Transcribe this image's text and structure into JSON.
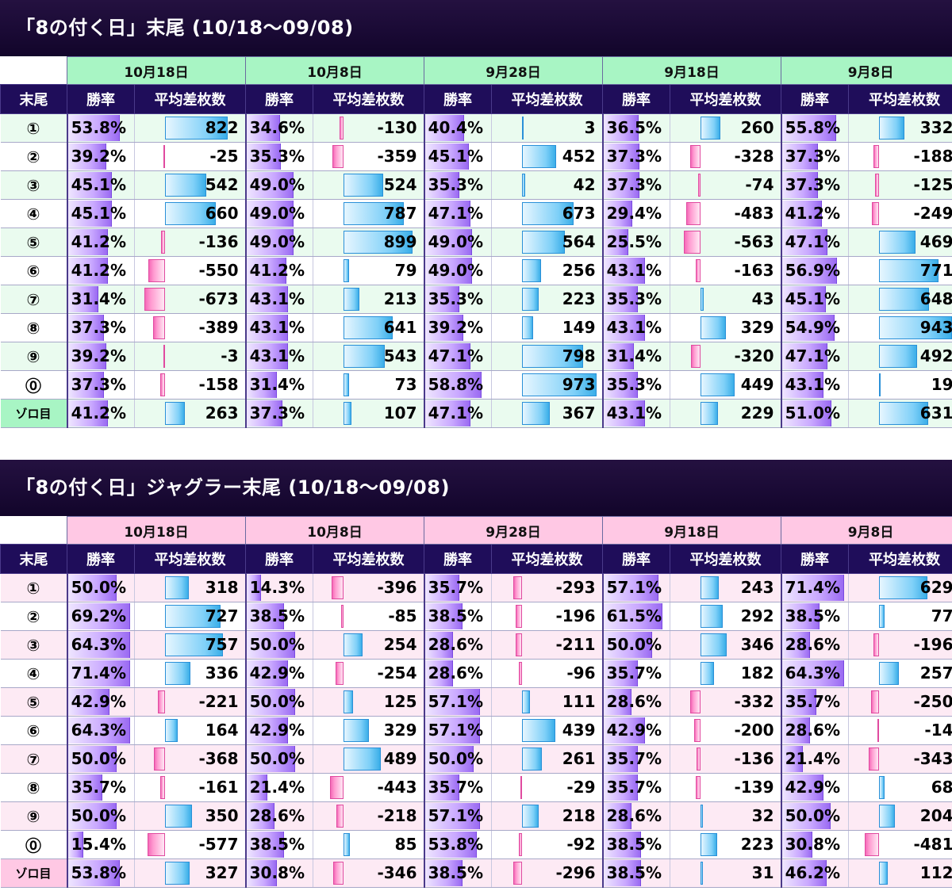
{
  "colors": {
    "title_bg": "#1a0a35",
    "header_bg": "#1f0d5a",
    "t1_date_bg": "#a8f5c4",
    "t1_row_alt": "#eafbef",
    "t2_date_bg": "#ffc8e4",
    "t2_row_alt": "#fdeaf4",
    "rate_bar": "#b48aff",
    "pos_bar": "#5bbcf0",
    "neg_bar": "#ff8fc8"
  },
  "header": {
    "label_col": "末尾",
    "rate_col": "勝率",
    "diff_col": "平均差枚数"
  },
  "tables": [
    {
      "title": "「8の付く日」末尾 (10/18〜09/08)",
      "dates": [
        "10月18日",
        "10月8日",
        "9月28日",
        "9月18日",
        "9月8日"
      ],
      "rows": [
        {
          "label": "①",
          "cells": [
            [
              "53.8%",
              822
            ],
            [
              "34.6%",
              -130
            ],
            [
              "40.4%",
              3
            ],
            [
              "36.5%",
              260
            ],
            [
              "55.8%",
              332
            ]
          ]
        },
        {
          "label": "②",
          "cells": [
            [
              "39.2%",
              -25
            ],
            [
              "35.3%",
              -359
            ],
            [
              "45.1%",
              452
            ],
            [
              "37.3%",
              -328
            ],
            [
              "37.3%",
              -188
            ]
          ]
        },
        {
          "label": "③",
          "cells": [
            [
              "45.1%",
              542
            ],
            [
              "49.0%",
              524
            ],
            [
              "35.3%",
              42
            ],
            [
              "37.3%",
              -74
            ],
            [
              "37.3%",
              -125
            ]
          ]
        },
        {
          "label": "④",
          "cells": [
            [
              "45.1%",
              660
            ],
            [
              "49.0%",
              787
            ],
            [
              "47.1%",
              673
            ],
            [
              "29.4%",
              -483
            ],
            [
              "41.2%",
              -249
            ]
          ]
        },
        {
          "label": "⑤",
          "cells": [
            [
              "41.2%",
              -136
            ],
            [
              "49.0%",
              899
            ],
            [
              "49.0%",
              564
            ],
            [
              "25.5%",
              -563
            ],
            [
              "47.1%",
              469
            ]
          ]
        },
        {
          "label": "⑥",
          "cells": [
            [
              "41.2%",
              -550
            ],
            [
              "41.2%",
              79
            ],
            [
              "49.0%",
              256
            ],
            [
              "43.1%",
              -163
            ],
            [
              "56.9%",
              771
            ]
          ]
        },
        {
          "label": "⑦",
          "cells": [
            [
              "31.4%",
              -673
            ],
            [
              "43.1%",
              213
            ],
            [
              "35.3%",
              223
            ],
            [
              "35.3%",
              43
            ],
            [
              "45.1%",
              648
            ]
          ]
        },
        {
          "label": "⑧",
          "cells": [
            [
              "37.3%",
              -389
            ],
            [
              "43.1%",
              641
            ],
            [
              "39.2%",
              149
            ],
            [
              "43.1%",
              329
            ],
            [
              "54.9%",
              943
            ]
          ]
        },
        {
          "label": "⑨",
          "cells": [
            [
              "39.2%",
              -3
            ],
            [
              "43.1%",
              543
            ],
            [
              "47.1%",
              798
            ],
            [
              "31.4%",
              -320
            ],
            [
              "47.1%",
              492
            ]
          ]
        },
        {
          "label": "⓪",
          "cells": [
            [
              "37.3%",
              -158
            ],
            [
              "31.4%",
              73
            ],
            [
              "58.8%",
              973
            ],
            [
              "35.3%",
              449
            ],
            [
              "43.1%",
              19
            ]
          ]
        },
        {
          "label": "ゾロ目",
          "cells": [
            [
              "41.2%",
              263
            ],
            [
              "37.3%",
              107
            ],
            [
              "47.1%",
              367
            ],
            [
              "43.1%",
              229
            ],
            [
              "51.0%",
              631
            ]
          ]
        }
      ]
    },
    {
      "title": "「8の付く日」ジャグラー末尾 (10/18〜09/08)",
      "dates": [
        "10月18日",
        "10月8日",
        "9月28日",
        "9月18日",
        "9月8日"
      ],
      "rows": [
        {
          "label": "①",
          "cells": [
            [
              "50.0%",
              318
            ],
            [
              "14.3%",
              -396
            ],
            [
              "35.7%",
              -293
            ],
            [
              "57.1%",
              243
            ],
            [
              "71.4%",
              629
            ]
          ]
        },
        {
          "label": "②",
          "cells": [
            [
              "69.2%",
              727
            ],
            [
              "38.5%",
              -85
            ],
            [
              "38.5%",
              -196
            ],
            [
              "61.5%",
              292
            ],
            [
              "38.5%",
              77
            ]
          ]
        },
        {
          "label": "③",
          "cells": [
            [
              "64.3%",
              757
            ],
            [
              "50.0%",
              254
            ],
            [
              "28.6%",
              -211
            ],
            [
              "50.0%",
              346
            ],
            [
              "28.6%",
              -196
            ]
          ]
        },
        {
          "label": "④",
          "cells": [
            [
              "71.4%",
              336
            ],
            [
              "42.9%",
              -254
            ],
            [
              "28.6%",
              -96
            ],
            [
              "35.7%",
              182
            ],
            [
              "64.3%",
              257
            ]
          ]
        },
        {
          "label": "⑤",
          "cells": [
            [
              "42.9%",
              -221
            ],
            [
              "50.0%",
              125
            ],
            [
              "57.1%",
              111
            ],
            [
              "28.6%",
              -332
            ],
            [
              "35.7%",
              -250
            ]
          ]
        },
        {
          "label": "⑥",
          "cells": [
            [
              "64.3%",
              164
            ],
            [
              "42.9%",
              329
            ],
            [
              "57.1%",
              439
            ],
            [
              "42.9%",
              -200
            ],
            [
              "28.6%",
              -14
            ]
          ]
        },
        {
          "label": "⑦",
          "cells": [
            [
              "50.0%",
              -368
            ],
            [
              "50.0%",
              489
            ],
            [
              "50.0%",
              261
            ],
            [
              "35.7%",
              -136
            ],
            [
              "21.4%",
              -343
            ]
          ]
        },
        {
          "label": "⑧",
          "cells": [
            [
              "35.7%",
              -161
            ],
            [
              "21.4%",
              -443
            ],
            [
              "35.7%",
              -29
            ],
            [
              "35.7%",
              -139
            ],
            [
              "42.9%",
              68
            ]
          ]
        },
        {
          "label": "⑨",
          "cells": [
            [
              "50.0%",
              350
            ],
            [
              "28.6%",
              -218
            ],
            [
              "57.1%",
              218
            ],
            [
              "28.6%",
              32
            ],
            [
              "50.0%",
              204
            ]
          ]
        },
        {
          "label": "⓪",
          "cells": [
            [
              "15.4%",
              -577
            ],
            [
              "38.5%",
              85
            ],
            [
              "53.8%",
              -92
            ],
            [
              "38.5%",
              223
            ],
            [
              "30.8%",
              -481
            ]
          ]
        },
        {
          "label": "ゾロ目",
          "cells": [
            [
              "53.8%",
              327
            ],
            [
              "30.8%",
              -346
            ],
            [
              "38.5%",
              -296
            ],
            [
              "38.5%",
              31
            ],
            [
              "46.2%",
              112
            ]
          ]
        }
      ]
    }
  ]
}
